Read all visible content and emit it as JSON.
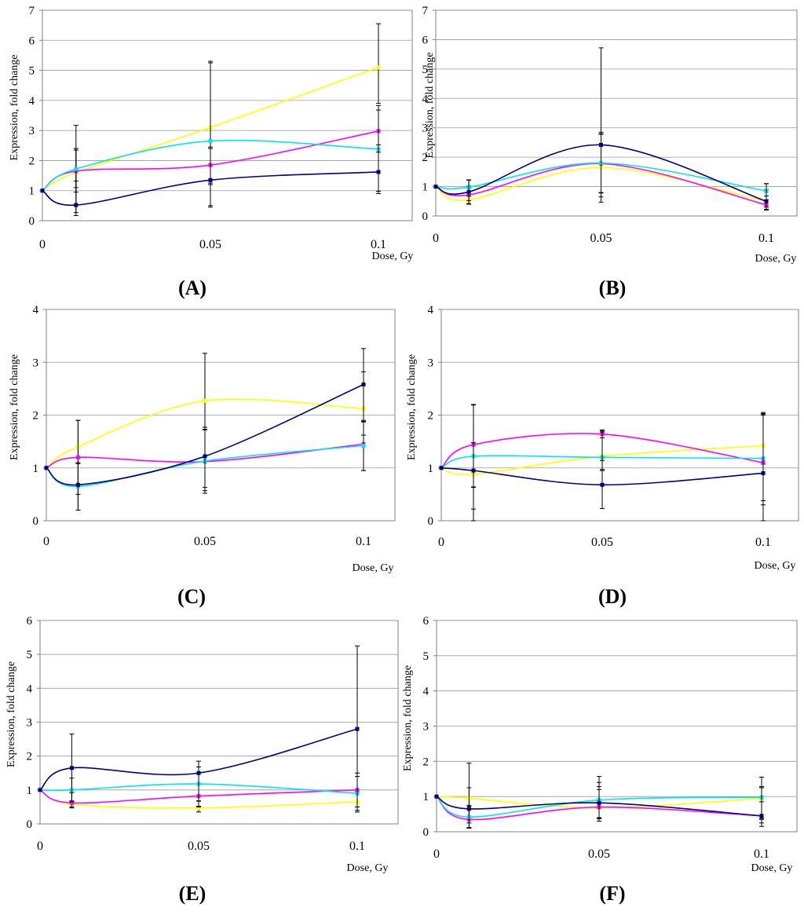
{
  "chart_data": [
    {
      "panel": "A",
      "type": "line",
      "x": [
        0,
        0.01,
        0.05,
        0.1
      ],
      "x_tick_labels": [
        "0",
        "0.05",
        "0.1"
      ],
      "x_tick_values": [
        0,
        0.05,
        0.1
      ],
      "ylim": [
        0,
        7
      ],
      "y_ticks": [
        "0",
        "1",
        "2",
        "3",
        "4",
        "5",
        "6",
        "7"
      ],
      "ylabel": "Expression, fold change",
      "xlabel": "Dose, Gy",
      "caption": "(A)",
      "series": [
        {
          "color": "#ffff00",
          "values": [
            1,
            1.6,
            3.1,
            5.1
          ],
          "err_lo": [
            0,
            0.5,
            2.6,
            1.2
          ],
          "err_hi": [
            0,
            0.8,
            2.2,
            1.45
          ]
        },
        {
          "color": "#ff00ff",
          "values": [
            1,
            1.65,
            1.85,
            2.98
          ],
          "err_lo": [
            0,
            0.7,
            0.6,
            0.7
          ],
          "err_hi": [
            0,
            0.7,
            0.55,
            0.7
          ]
        },
        {
          "color": "#00e5ee",
          "values": [
            1,
            1.72,
            2.65,
            2.38
          ],
          "err_lo": [
            0,
            1.45,
            1.45,
            1.4
          ],
          "err_hi": [
            0,
            1.45,
            2.6,
            1.45
          ]
        },
        {
          "color": "#000080",
          "values": [
            1,
            0.52,
            1.35,
            1.62
          ],
          "err_lo": [
            0,
            0.35,
            0.9,
            0.72
          ],
          "err_hi": [
            0,
            0.8,
            1.1,
            0.9
          ]
        }
      ]
    },
    {
      "panel": "B",
      "type": "line",
      "x": [
        0,
        0.01,
        0.05,
        0.1
      ],
      "x_tick_labels": [
        "0",
        "0.05",
        "0.1"
      ],
      "x_tick_values": [
        0,
        0.05,
        0.1
      ],
      "ylim": [
        0,
        7
      ],
      "y_ticks": [
        "0",
        "1",
        "2",
        "3",
        "4",
        "5",
        "6",
        "7"
      ],
      "ylabel": "Expression, fold change",
      "xlabel": "Dose, Gy",
      "caption": "(B)",
      "series": [
        {
          "color": "#ffff00",
          "values": [
            1,
            0.55,
            1.65,
            0.5
          ],
          "err_lo": [
            0,
            0.15,
            1.0,
            0.2
          ],
          "err_hi": [
            0,
            0.4,
            1.2,
            0.4
          ]
        },
        {
          "color": "#ff00ff",
          "values": [
            1,
            0.72,
            1.78,
            0.38
          ],
          "err_lo": [
            0,
            0.2,
            1.0,
            0.15
          ],
          "err_hi": [
            0,
            0.3,
            1.0,
            0.3
          ]
        },
        {
          "color": "#00e5ee",
          "values": [
            1,
            0.98,
            1.8,
            0.85
          ],
          "err_lo": [
            0,
            0.3,
            1.0,
            0.3
          ],
          "err_hi": [
            0,
            0.25,
            1.0,
            0.25
          ]
        },
        {
          "color": "#000080",
          "values": [
            1,
            0.82,
            2.42,
            0.5
          ],
          "err_lo": [
            0,
            0.4,
            1.95,
            0.3
          ],
          "err_hi": [
            0,
            0.4,
            3.3,
            0.6
          ]
        }
      ]
    },
    {
      "panel": "C",
      "type": "line",
      "x": [
        0,
        0.01,
        0.05,
        0.1
      ],
      "x_tick_labels": [
        "0",
        "0.05",
        "0.1"
      ],
      "x_tick_values": [
        0,
        0.05,
        0.1
      ],
      "ylim": [
        0,
        4
      ],
      "y_ticks": [
        "0",
        "1",
        "2",
        "3",
        "4"
      ],
      "ylabel": "Expression, fold change",
      "xlabel": "Dose, Gy",
      "caption": "(C)",
      "series": [
        {
          "color": "#ffff00",
          "values": [
            1,
            1.4,
            2.27,
            2.12
          ],
          "err_lo": [
            0,
            0.3,
            0.5,
            0.5
          ],
          "err_hi": [
            0,
            0.5,
            0.9,
            0.7
          ]
        },
        {
          "color": "#ff00ff",
          "values": [
            1,
            1.2,
            1.12,
            1.45
          ],
          "err_lo": [
            0,
            0.7,
            0.6,
            0.5
          ],
          "err_hi": [
            0,
            0.7,
            0.6,
            0.45
          ]
        },
        {
          "color": "#00e5ee",
          "values": [
            1,
            0.65,
            1.13,
            1.42
          ],
          "err_lo": [
            0,
            0.45,
            0.5,
            0.47
          ],
          "err_hi": [
            0,
            0.45,
            0.6,
            0.45
          ]
        },
        {
          "color": "#000080",
          "values": [
            1,
            0.68,
            1.22,
            2.58
          ],
          "err_lo": [
            0,
            0.48,
            0.65,
            0.7
          ],
          "err_hi": [
            0,
            0.4,
            0.55,
            0.68
          ]
        }
      ]
    },
    {
      "panel": "D",
      "type": "line",
      "x": [
        0,
        0.01,
        0.05,
        0.1
      ],
      "x_tick_labels": [
        "0",
        "0.05",
        "0.1"
      ],
      "x_tick_values": [
        0,
        0.05,
        0.1
      ],
      "ylim": [
        0,
        4
      ],
      "y_ticks": [
        "0",
        "1",
        "2",
        "3",
        "4"
      ],
      "ylabel": "Expression, fold change",
      "xlabel": "Dose, Gy",
      "caption": "(D)",
      "series": [
        {
          "color": "#ffff00",
          "values": [
            1,
            0.88,
            1.22,
            1.42
          ],
          "err_lo": [
            0,
            0.25,
            0.25,
            0.35
          ],
          "err_hi": [
            0,
            0.6,
            0.35,
            0.6
          ]
        },
        {
          "color": "#ff00ff",
          "values": [
            1,
            1.44,
            1.64,
            1.1
          ],
          "err_lo": [
            0,
            0.8,
            0.5,
            0.8
          ],
          "err_hi": [
            0,
            0.75,
            0.08,
            0.9
          ]
        },
        {
          "color": "#00e5ee",
          "values": [
            1,
            1.22,
            1.2,
            1.18
          ],
          "err_lo": [
            0,
            1.0,
            0.25,
            0.8
          ],
          "err_hi": [
            0,
            0.98,
            0.5,
            0.85
          ]
        },
        {
          "color": "#000080",
          "values": [
            1,
            0.95,
            0.68,
            0.9
          ],
          "err_lo": [
            0,
            0.95,
            0.45,
            0.9
          ],
          "err_hi": [
            0,
            1.25,
            1.0,
            1.15
          ]
        }
      ]
    },
    {
      "panel": "E",
      "type": "line",
      "x": [
        0,
        0.01,
        0.05,
        0.1
      ],
      "x_tick_labels": [
        "0",
        "0.05",
        "0.1"
      ],
      "x_tick_values": [
        0,
        0.05,
        0.1
      ],
      "ylim": [
        0,
        6
      ],
      "y_ticks": [
        "0",
        "1",
        "2",
        "3",
        "4",
        "5",
        "6"
      ],
      "ylabel": "Expression, fold change",
      "xlabel": "Dose, Gy",
      "caption": "(E)",
      "series": [
        {
          "color": "#ffff00",
          "values": [
            1,
            0.58,
            0.47,
            0.65
          ],
          "err_lo": [
            0,
            0.08,
            0.12,
            0.3
          ],
          "err_hi": [
            0,
            0.1,
            0.2,
            0.3
          ]
        },
        {
          "color": "#ff00ff",
          "values": [
            1,
            0.62,
            0.82,
            1.0
          ],
          "err_lo": [
            0,
            0.15,
            0.3,
            0.5
          ],
          "err_hi": [
            0,
            0.3,
            0.35,
            0.5
          ]
        },
        {
          "color": "#00e5ee",
          "values": [
            1,
            1.0,
            1.18,
            0.9
          ],
          "err_lo": [
            0,
            0.35,
            0.5,
            0.5
          ],
          "err_hi": [
            0,
            0.35,
            0.5,
            0.5
          ]
        },
        {
          "color": "#000080",
          "values": [
            1,
            1.65,
            1.5,
            2.8
          ],
          "err_lo": [
            0,
            1.0,
            1.0,
            2.3
          ],
          "err_hi": [
            0,
            1.0,
            0.35,
            2.45
          ]
        }
      ]
    },
    {
      "panel": "F",
      "type": "line",
      "x": [
        0,
        0.01,
        0.05,
        0.1
      ],
      "x_tick_labels": [
        "0",
        "0.05",
        "0.1"
      ],
      "x_tick_values": [
        0,
        0.05,
        0.1
      ],
      "ylim": [
        0,
        6
      ],
      "y_ticks": [
        "0",
        "1",
        "2",
        "3",
        "4",
        "5",
        "6"
      ],
      "ylabel": "Expression, fold change",
      "xlabel": "Dose, Gy",
      "caption": "(F)",
      "series": [
        {
          "color": "#ffff00",
          "values": [
            1,
            0.95,
            0.68,
            0.95
          ],
          "err_lo": [
            0,
            0.6,
            0.3,
            0.6
          ],
          "err_hi": [
            0,
            1.0,
            0.6,
            0.6
          ]
        },
        {
          "color": "#ff00ff",
          "values": [
            1,
            0.35,
            0.7,
            0.45
          ],
          "err_lo": [
            0,
            0.25,
            0.4,
            0.3
          ],
          "err_hi": [
            0,
            0.4,
            0.5,
            0.4
          ]
        },
        {
          "color": "#00e5ee",
          "values": [
            1,
            0.42,
            0.9,
            0.98
          ],
          "err_lo": [
            0,
            0.3,
            0.5,
            0.6
          ],
          "err_hi": [
            0,
            0.3,
            0.5,
            0.3
          ]
        },
        {
          "color": "#000080",
          "values": [
            1,
            0.65,
            0.82,
            0.45
          ],
          "err_lo": [
            0,
            0.4,
            0.45,
            0.2
          ],
          "err_hi": [
            0,
            0.6,
            0.75,
            0.8
          ]
        }
      ]
    }
  ]
}
